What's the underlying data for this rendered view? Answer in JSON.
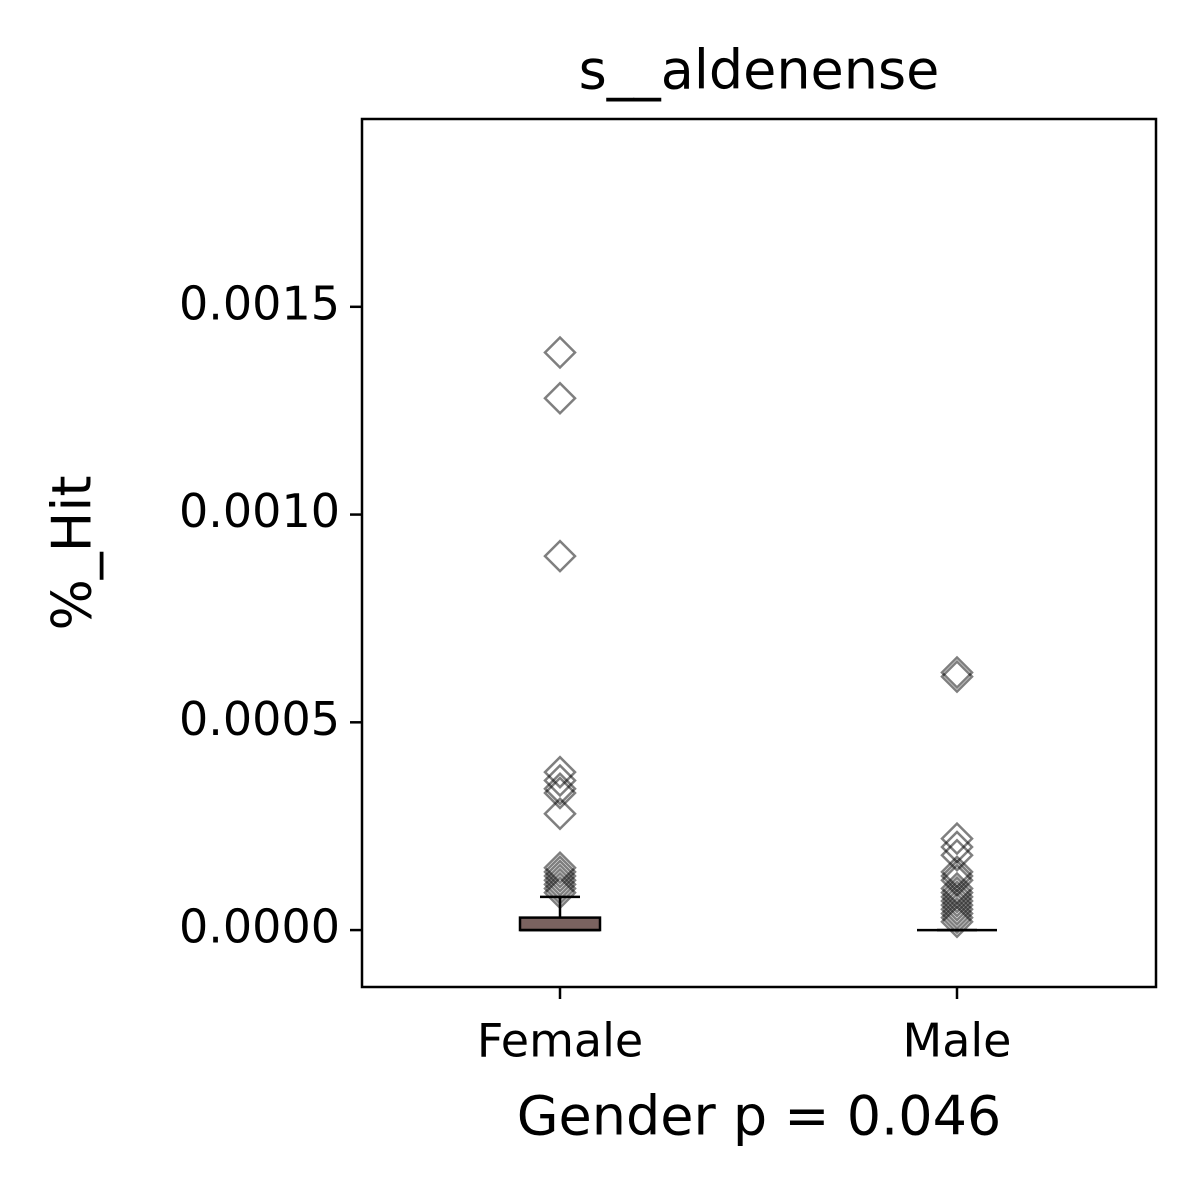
{
  "chart_data": {
    "type": "box",
    "title": "s__aldenense",
    "x_label": "Gender p = 0.046",
    "y_label": "%_Hit",
    "categories": [
      "Female",
      "Male"
    ],
    "box_color": "#7a6360",
    "boxes": [
      {
        "q1": 0,
        "median": 0,
        "q3": 3e-05,
        "whislo": 0,
        "whishi": 8e-05,
        "outliers": [
          0.00139,
          0.00128,
          0.0009,
          0.00038,
          0.00036,
          0.00034,
          0.00033,
          0.00028,
          0.00015,
          0.00014,
          0.00013,
          0.00012,
          0.00011,
          0.0001,
          9e-05
        ]
      },
      {
        "q1": 0,
        "median": 0,
        "q3": 0,
        "whislo": 0,
        "whishi": 0,
        "outliers": [
          0.00062,
          0.00061,
          0.00022,
          0.0002,
          0.00018,
          0.00014,
          0.00013,
          0.00012,
          0.0001,
          9e-05,
          8e-05,
          7e-05,
          6e-05,
          5e-05,
          4e-05,
          3e-05,
          2e-05
        ]
      }
    ],
    "ylim": [
      -0.000137,
      0.001952
    ],
    "yticks": [
      {
        "value": 0,
        "label": "0.0000"
      },
      {
        "value": 0.0005,
        "label": "0.0005"
      },
      {
        "value": 0.001,
        "label": "0.0010"
      },
      {
        "value": 0.0015,
        "label": "0.0015"
      }
    ]
  }
}
